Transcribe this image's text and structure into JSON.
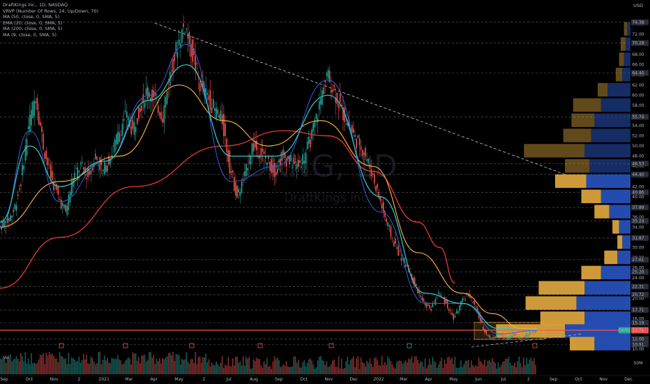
{
  "legend": {
    "title": "DraftKings Inc., 1D, NASDAQ",
    "indicators": [
      "VRVP (Number Of Rows, 24, Up/Down, 70)",
      "MA (50, close, 0, SMA, 5)",
      "EMA (20, close, 0, SMA, 5)",
      "MA (200, close, 0, SMA, 5)",
      "MA (9, close, 0, SMA, 5)"
    ]
  },
  "currency": "USD",
  "volume_label": "Vol",
  "volume_right_label": "50M",
  "watermark": {
    "symbol": "DKNG, 1D",
    "name": "DraftKings Inc."
  },
  "colors": {
    "background": "#000000",
    "up": "#26a69a",
    "down": "#ef5350",
    "ma50": "#f2a93b",
    "ema20": "#2ec4c6",
    "ma200": "#e53935",
    "ma9": "#3c5bd6",
    "support": "#ef5350",
    "vp_up": "#2650b8",
    "vp_down": "#d9a23c",
    "price_tag": "#26a69a"
  },
  "chart_data": {
    "type": "candlestick",
    "symbol": "DKNG",
    "interval": "1D",
    "x_axis_labels": [
      "Sep",
      "Oct",
      "Nov",
      "2",
      "2021",
      "Mar",
      "Apr",
      "May",
      "2",
      "Jul",
      "Aug",
      "Sep",
      "Oct",
      "Nov",
      "Dec",
      "2022",
      "Mar",
      "Apr",
      "May",
      "Jun",
      "Jul",
      "2",
      "Sep",
      "Oct",
      "Nov",
      "Dec"
    ],
    "y_axis_labels": [
      "74.00",
      "72.00",
      "70.00",
      "68.00",
      "66.00",
      "64.00",
      "62.00",
      "60.00",
      "58.00",
      "56.00",
      "54.00",
      "52.00",
      "50.00",
      "48.00",
      "46.00",
      "44.00",
      "42.00",
      "40.00",
      "38.00",
      "36.00",
      "34.00",
      "32.00",
      "30.00",
      "28.00",
      "26.00",
      "24.00",
      "22.00",
      "20.00",
      "18.00",
      "16.00",
      "14.00",
      "12.00",
      "10.00"
    ],
    "price_tags": [
      "74.38",
      "70.28",
      "64.40",
      "55.74",
      "46.53",
      "44.40",
      "40.86",
      "37.89",
      "35.24",
      "31.87",
      "27.61",
      "25.20",
      "22.31",
      "20.72",
      "17.71",
      "15.19",
      "13.71",
      "12.00",
      "10.91"
    ],
    "current_price": "13.71",
    "current_label": "DKNG",
    "ylim": [
      10,
      76
    ],
    "price_path": [
      [
        0,
        34
      ],
      [
        5,
        35
      ],
      [
        10,
        37
      ],
      [
        15,
        43
      ],
      [
        20,
        54
      ],
      [
        25,
        60
      ],
      [
        30,
        50
      ],
      [
        35,
        44
      ],
      [
        40,
        40
      ],
      [
        45,
        37
      ],
      [
        50,
        44
      ],
      [
        55,
        46
      ],
      [
        60,
        44
      ],
      [
        65,
        48
      ],
      [
        70,
        45
      ],
      [
        75,
        48
      ],
      [
        80,
        52
      ],
      [
        85,
        56
      ],
      [
        90,
        53
      ],
      [
        95,
        58
      ],
      [
        100,
        61
      ],
      [
        105,
        59
      ],
      [
        110,
        56
      ],
      [
        115,
        64
      ],
      [
        120,
        70
      ],
      [
        125,
        74
      ],
      [
        130,
        68
      ],
      [
        135,
        62
      ],
      [
        140,
        60
      ],
      [
        145,
        57
      ],
      [
        150,
        55
      ],
      [
        155,
        46
      ],
      [
        160,
        40
      ],
      [
        165,
        44
      ],
      [
        170,
        50
      ],
      [
        175,
        49
      ],
      [
        180,
        47
      ],
      [
        185,
        45
      ],
      [
        190,
        48
      ],
      [
        195,
        47
      ],
      [
        200,
        46
      ],
      [
        205,
        48
      ],
      [
        210,
        52
      ],
      [
        215,
        58
      ],
      [
        220,
        64
      ],
      [
        225,
        61
      ],
      [
        230,
        57
      ],
      [
        235,
        54
      ],
      [
        240,
        51
      ],
      [
        245,
        49
      ],
      [
        250,
        45
      ],
      [
        255,
        40
      ],
      [
        260,
        35
      ],
      [
        265,
        31
      ],
      [
        270,
        28
      ],
      [
        275,
        26
      ],
      [
        280,
        22
      ],
      [
        285,
        19
      ],
      [
        290,
        18
      ],
      [
        295,
        21
      ],
      [
        300,
        19
      ],
      [
        305,
        16
      ],
      [
        310,
        19
      ],
      [
        315,
        21
      ],
      [
        320,
        18
      ],
      [
        325,
        14
      ],
      [
        330,
        12
      ],
      [
        335,
        13
      ],
      [
        340,
        12
      ],
      [
        345,
        13
      ],
      [
        350,
        12
      ],
      [
        355,
        13
      ],
      [
        360,
        13.7
      ]
    ],
    "ma_paths": {
      "ma50": [
        [
          0,
          34
        ],
        [
          40,
          43
        ],
        [
          80,
          48
        ],
        [
          120,
          62
        ],
        [
          150,
          55
        ],
        [
          180,
          50
        ],
        [
          215,
          55
        ],
        [
          250,
          46
        ],
        [
          280,
          29
        ],
        [
          310,
          21
        ],
        [
          330,
          17
        ],
        [
          350,
          14
        ],
        [
          360,
          14
        ]
      ],
      "ema20": [
        [
          0,
          35
        ],
        [
          20,
          50
        ],
        [
          40,
          42
        ],
        [
          70,
          47
        ],
        [
          100,
          59
        ],
        [
          125,
          66
        ],
        [
          155,
          48
        ],
        [
          185,
          48
        ],
        [
          220,
          60
        ],
        [
          255,
          40
        ],
        [
          285,
          21
        ],
        [
          310,
          19
        ],
        [
          335,
          14
        ],
        [
          360,
          13.8
        ]
      ],
      "ma9": [
        [
          0,
          34
        ],
        [
          20,
          53
        ],
        [
          40,
          39
        ],
        [
          70,
          47
        ],
        [
          100,
          60
        ],
        [
          125,
          70
        ],
        [
          155,
          43
        ],
        [
          185,
          46
        ],
        [
          220,
          63
        ],
        [
          255,
          37
        ],
        [
          285,
          19
        ],
        [
          310,
          19
        ],
        [
          335,
          13
        ],
        [
          360,
          13.7
        ]
      ],
      "ma200": [
        [
          0,
          22
        ],
        [
          40,
          32
        ],
        [
          90,
          42
        ],
        [
          150,
          50
        ],
        [
          190,
          53
        ],
        [
          220,
          52
        ],
        [
          250,
          45
        ],
        [
          280,
          35
        ],
        [
          295,
          30
        ],
        [
          305,
          23
        ]
      ]
    },
    "volume_profile": [
      {
        "price": 73.0,
        "up": 2,
        "down": 2
      },
      {
        "price": 70.0,
        "up": 3,
        "down": 3
      },
      {
        "price": 67.0,
        "up": 4,
        "down": 3
      },
      {
        "price": 64.0,
        "up": 5,
        "down": 4
      },
      {
        "price": 61.0,
        "up": 14,
        "down": 6
      },
      {
        "price": 58.0,
        "up": 18,
        "down": 17
      },
      {
        "price": 55.0,
        "up": 22,
        "down": 14
      },
      {
        "price": 52.0,
        "up": 24,
        "down": 17
      },
      {
        "price": 49.0,
        "up": 28,
        "down": 37
      },
      {
        "price": 46.0,
        "up": 25,
        "down": 15
      },
      {
        "price": 43.0,
        "up": 27,
        "down": 19
      },
      {
        "price": 40.0,
        "up": 18,
        "down": 12
      },
      {
        "price": 37.0,
        "up": 13,
        "down": 9
      },
      {
        "price": 34.0,
        "up": 7,
        "down": 4
      },
      {
        "price": 31.0,
        "up": 5,
        "down": 3
      },
      {
        "price": 28.0,
        "up": 8,
        "down": 8
      },
      {
        "price": 25.0,
        "up": 18,
        "down": 12
      },
      {
        "price": 22.0,
        "up": 28,
        "down": 28
      },
      {
        "price": 19.0,
        "up": 33,
        "down": 31
      },
      {
        "price": 16.0,
        "up": 28,
        "down": 27
      },
      {
        "price": 13.5,
        "up": 40,
        "down": 42
      },
      {
        "price": 11.0,
        "up": 22,
        "down": 15
      }
    ]
  }
}
